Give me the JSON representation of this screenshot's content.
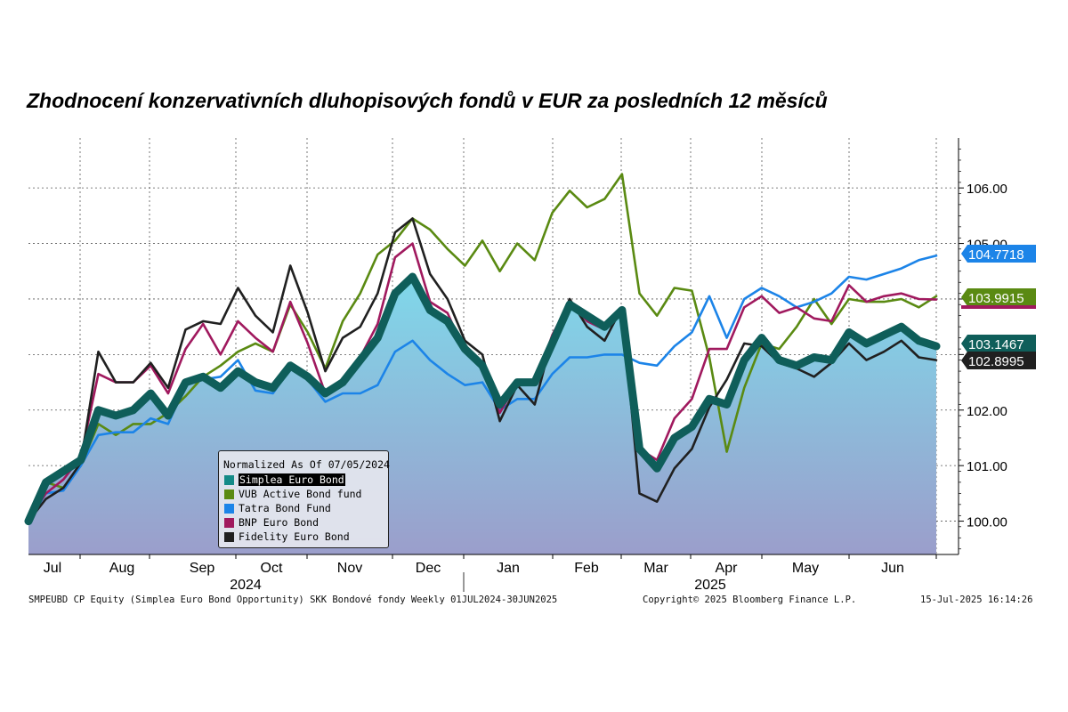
{
  "title": "Zhodnocení konzervativních dluhopisových fondů v EUR za posledních 12 měsíců",
  "chart_data": {
    "type": "line",
    "title": "Zhodnocení konzervativních dluhopisových fondů v EUR za posledních 12 měsíců",
    "x_labels": [
      "Jul",
      "Aug",
      "Sep",
      "Oct",
      "Nov",
      "Dec",
      "Jan",
      "Feb",
      "Mar",
      "Apr",
      "May",
      "Jun"
    ],
    "year_labels": [
      "2024",
      "2025"
    ],
    "y_ticks": [
      "106.00",
      "105.00",
      "104.00",
      "103.00",
      "102.00",
      "101.00",
      "100.00"
    ],
    "ylim": [
      99.4,
      106.9
    ],
    "grid": true,
    "legend_placement": "bottom-left",
    "legend_title": "Normalized As Of 07/05/2024",
    "series": [
      {
        "name": "Simplea Euro Bond",
        "color": "#0f5e5a",
        "fill": true,
        "last_value": "103.1467",
        "values": [
          100.0,
          100.7,
          100.9,
          101.1,
          102.0,
          101.9,
          102.0,
          102.3,
          101.9,
          102.5,
          102.6,
          102.4,
          102.7,
          102.5,
          102.4,
          102.8,
          102.6,
          102.3,
          102.5,
          102.9,
          103.3,
          104.1,
          104.4,
          103.8,
          103.6,
          103.1,
          102.8,
          102.1,
          102.5,
          102.5,
          103.2,
          103.9,
          103.7,
          103.5,
          103.8,
          101.3,
          100.95,
          101.5,
          101.7,
          102.2,
          102.1,
          102.9,
          103.3,
          102.9,
          102.8,
          102.95,
          102.9,
          103.4,
          103.2,
          103.35,
          103.5,
          103.25,
          103.15
        ]
      },
      {
        "name": "VUB Active Bond fund",
        "color": "#5a8a12",
        "fill": false,
        "last_value": "103.9915",
        "values": [
          100.05,
          100.7,
          100.6,
          101.0,
          101.75,
          101.55,
          101.75,
          101.75,
          101.95,
          102.25,
          102.6,
          102.8,
          103.05,
          103.2,
          103.05,
          103.9,
          103.4,
          102.75,
          103.6,
          104.1,
          104.8,
          105.05,
          105.45,
          105.25,
          104.9,
          104.6,
          105.05,
          104.5,
          105.0,
          104.7,
          105.55,
          105.95,
          105.65,
          105.8,
          106.25,
          104.1,
          103.7,
          104.2,
          104.15,
          102.95,
          101.25,
          102.4,
          103.2,
          103.1,
          103.5,
          104.0,
          103.55,
          104.0,
          103.95,
          103.95,
          104.0,
          103.85,
          104.05
        ]
      },
      {
        "name": "Tatra Bond Fund",
        "color": "#1c84e8",
        "fill": false,
        "last_value": "104.7718",
        "values": [
          100.0,
          100.5,
          100.55,
          101.0,
          101.55,
          101.6,
          101.6,
          101.85,
          101.75,
          102.45,
          102.55,
          102.6,
          102.9,
          102.35,
          102.3,
          102.75,
          102.55,
          102.15,
          102.3,
          102.3,
          102.45,
          103.05,
          103.25,
          102.9,
          102.65,
          102.45,
          102.5,
          102.0,
          102.2,
          102.2,
          102.65,
          102.95,
          102.95,
          103.0,
          103.0,
          102.85,
          102.8,
          103.15,
          103.4,
          104.05,
          103.3,
          104.0,
          104.2,
          104.05,
          103.85,
          103.95,
          104.1,
          104.4,
          104.35,
          104.45,
          104.55,
          104.7,
          104.78
        ]
      },
      {
        "name": "BNP Euro Bond",
        "color": "#a0195e",
        "fill": false,
        "last_value": "",
        "values": [
          100.05,
          100.5,
          100.75,
          101.15,
          102.65,
          102.5,
          102.5,
          102.8,
          102.3,
          103.1,
          103.55,
          103.0,
          103.6,
          103.3,
          103.05,
          103.95,
          103.2,
          102.3,
          102.45,
          102.95,
          103.55,
          104.75,
          105.0,
          103.95,
          103.75,
          103.05,
          102.8,
          101.95,
          102.5,
          102.45,
          103.35,
          103.95,
          103.6,
          103.45,
          103.85,
          101.3,
          101.1,
          101.85,
          102.2,
          103.1,
          103.1,
          103.85,
          104.05,
          103.75,
          103.85,
          103.65,
          103.6,
          104.25,
          103.95,
          104.05,
          104.1,
          104.0,
          103.99
        ]
      },
      {
        "name": "Fidelity Euro Bond",
        "color": "#202020",
        "fill": false,
        "last_value": "102.8995",
        "values": [
          100.0,
          100.4,
          100.6,
          101.05,
          103.05,
          102.5,
          102.5,
          102.85,
          102.4,
          103.45,
          103.6,
          103.55,
          104.2,
          103.7,
          103.4,
          104.6,
          103.75,
          102.7,
          103.3,
          103.5,
          104.1,
          105.2,
          105.45,
          104.45,
          104.0,
          103.25,
          103.0,
          101.8,
          102.45,
          102.1,
          103.3,
          104.0,
          103.5,
          103.25,
          103.85,
          100.5,
          100.35,
          100.95,
          101.3,
          102.05,
          102.55,
          103.2,
          103.15,
          102.85,
          102.75,
          102.6,
          102.85,
          103.2,
          102.9,
          103.05,
          103.25,
          102.95,
          102.9
        ]
      }
    ],
    "value_labels": [
      "104.7718",
      "103.9915",
      "103.1467",
      "102.8995"
    ]
  },
  "footer": {
    "source": "SMPEUBD CP Equity (Simplea Euro Bond Opportunity) SKK Bondové fondy  Weekly 01JUL2024-30JUN2025",
    "copyright": "Copyright© 2025 Bloomberg Finance L.P.",
    "timestamp": "15-Jul-2025 16:14:26"
  }
}
